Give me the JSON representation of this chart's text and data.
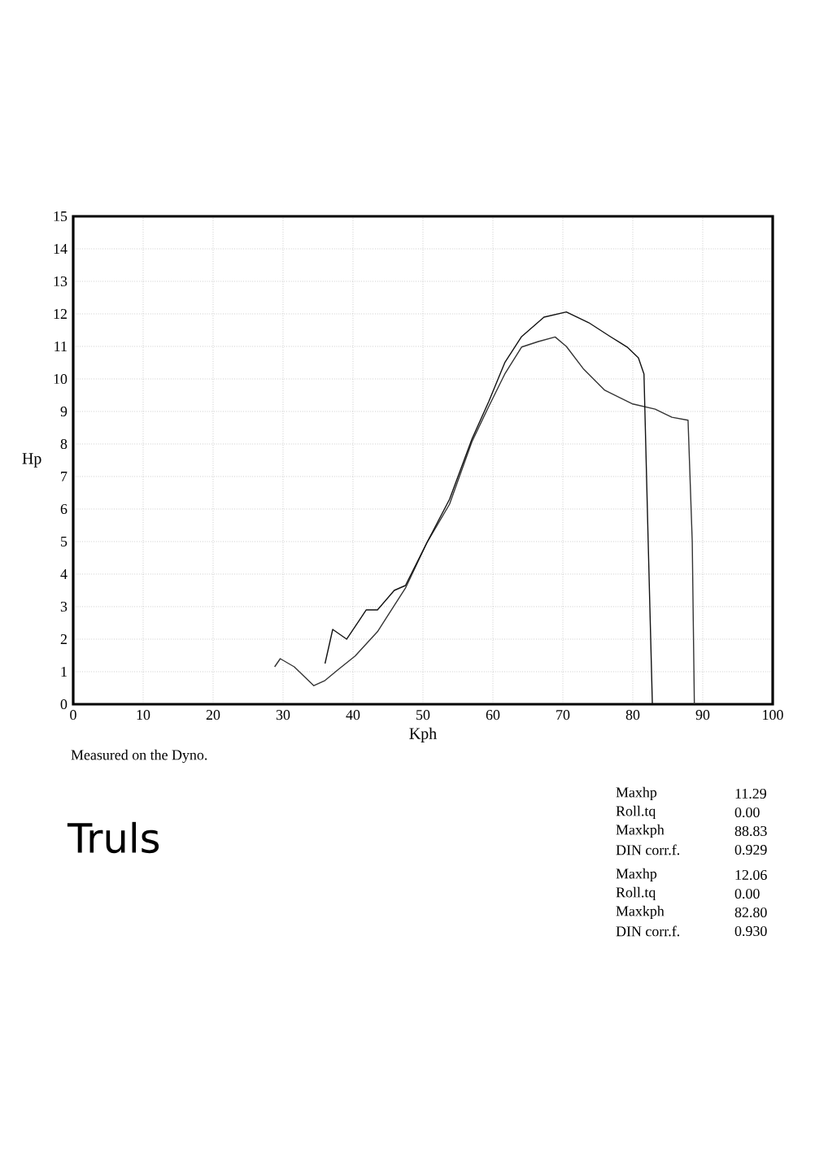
{
  "chart_data": {
    "type": "line",
    "xlabel": "Kph",
    "ylabel": "Hp",
    "xlim": [
      0,
      100
    ],
    "ylim": [
      0,
      15
    ],
    "xticks": [
      0,
      10,
      20,
      30,
      40,
      50,
      60,
      70,
      80,
      90,
      100
    ],
    "yticks": [
      0,
      1,
      2,
      3,
      4,
      5,
      6,
      7,
      8,
      9,
      10,
      11,
      12,
      13,
      14,
      15
    ],
    "grid": true,
    "marker": "none",
    "line_style": "solid",
    "series": [
      {
        "color": "#333333",
        "x": [
          28.8,
          29.6,
          31.6,
          34.4,
          36,
          37.9,
          40.3,
          43.5,
          47.5,
          50.6,
          53.8,
          57,
          59.4,
          61.7,
          64.1,
          66.5,
          68.9,
          70.5,
          72.9,
          76,
          80,
          83.2,
          85.6,
          87.9,
          88.5,
          88.8
        ],
        "values": [
          1.15,
          1.4,
          1.15,
          0.57,
          0.73,
          1.07,
          1.48,
          2.23,
          3.57,
          4.98,
          6.15,
          8.07,
          9.15,
          10.15,
          10.98,
          11.15,
          11.29,
          11,
          10.32,
          9.65,
          9.23,
          9.07,
          8.82,
          8.73,
          5,
          0
        ]
      },
      {
        "color": "#111111",
        "x": [
          36,
          37.1,
          39.1,
          41.9,
          43.5,
          45.9,
          47.5,
          50.6,
          53.8,
          57,
          59.4,
          61.7,
          64.1,
          67.3,
          70.5,
          73.7,
          76.8,
          79.2,
          80.8,
          81.6,
          82.2,
          82.8
        ],
        "values": [
          1.25,
          2.3,
          2,
          2.9,
          2.9,
          3.5,
          3.65,
          4.98,
          6.3,
          8.15,
          9.3,
          10.5,
          11.3,
          11.9,
          12.06,
          11.73,
          11.3,
          10.98,
          10.65,
          10.15,
          5,
          0
        ]
      }
    ],
    "annotations": [
      "Measured on the Dyno.",
      "Truls",
      "Maxhp",
      "11.29",
      "Roll.tq",
      "0.00",
      "Maxkph",
      "88.83",
      "DIN corr.f.",
      "0.929",
      "Maxhp",
      "12.06",
      "Roll.tq",
      "0.00",
      "Maxkph",
      "82.80",
      "DIN corr.f.",
      "0.930"
    ]
  }
}
